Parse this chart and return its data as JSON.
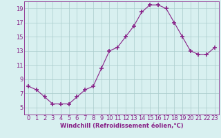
{
  "x": [
    0,
    1,
    2,
    3,
    4,
    5,
    6,
    7,
    8,
    9,
    10,
    11,
    12,
    13,
    14,
    15,
    16,
    17,
    18,
    19,
    20,
    21,
    22,
    23
  ],
  "y": [
    8,
    7.5,
    6.5,
    5.5,
    5.5,
    5.5,
    6.5,
    7.5,
    8,
    10.5,
    13,
    13.5,
    15,
    16.5,
    18.5,
    19.5,
    19.5,
    19,
    17,
    15,
    13,
    12.5,
    12.5,
    13.5
  ],
  "line_color": "#882288",
  "marker": "+",
  "marker_size": 4,
  "marker_linewidth": 1.2,
  "bg_color": "#d8f0f0",
  "grid_color": "#aacccc",
  "xlabel": "Windchill (Refroidissement éolien,°C)",
  "xlabel_fontsize": 6,
  "tick_fontsize": 6,
  "ylim": [
    4,
    20
  ],
  "xlim": [
    -0.5,
    23.5
  ],
  "yticks": [
    5,
    7,
    9,
    11,
    13,
    15,
    17,
    19
  ],
  "xticks": [
    0,
    1,
    2,
    3,
    4,
    5,
    6,
    7,
    8,
    9,
    10,
    11,
    12,
    13,
    14,
    15,
    16,
    17,
    18,
    19,
    20,
    21,
    22,
    23
  ]
}
